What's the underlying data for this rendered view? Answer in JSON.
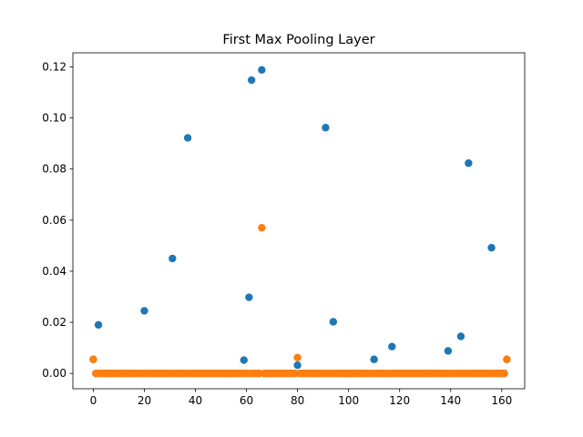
{
  "chart_data": {
    "type": "scatter",
    "title": "First Max Pooling Layer",
    "xlabel": "",
    "ylabel": "",
    "xlim": [
      -8,
      169
    ],
    "ylim": [
      -0.006,
      0.1255
    ],
    "xticks": [
      0,
      20,
      40,
      60,
      80,
      100,
      120,
      140,
      160
    ],
    "yticks": [
      0.0,
      0.02,
      0.04,
      0.06,
      0.08,
      0.1,
      0.12
    ],
    "ytick_labels": [
      "0.00",
      "0.02",
      "0.04",
      "0.06",
      "0.08",
      "0.10",
      "0.12"
    ],
    "grid": false,
    "legend": "none",
    "x_count": 163,
    "series": [
      {
        "color": "#1f77b4",
        "baseline": 0.0,
        "points": [
          [
            0,
            0.0055
          ],
          [
            2,
            0.019
          ],
          [
            20,
            0.0245
          ],
          [
            31,
            0.045
          ],
          [
            37,
            0.0922
          ],
          [
            59,
            0.0052
          ],
          [
            61,
            0.0298
          ],
          [
            62,
            0.1148
          ],
          [
            66,
            0.1188
          ],
          [
            80,
            0.0032
          ],
          [
            91,
            0.0962
          ],
          [
            94,
            0.0202
          ],
          [
            110,
            0.0055
          ],
          [
            117,
            0.0105
          ],
          [
            139,
            0.0088
          ],
          [
            144,
            0.0145
          ],
          [
            147,
            0.0823
          ],
          [
            156,
            0.0492
          ],
          [
            162,
            0.0055
          ]
        ]
      },
      {
        "color": "#ff7f0e",
        "baseline": 0.0,
        "points": [
          [
            0,
            0.0055
          ],
          [
            66,
            0.057
          ],
          [
            80,
            0.0062
          ],
          [
            162,
            0.0055
          ]
        ]
      }
    ]
  }
}
